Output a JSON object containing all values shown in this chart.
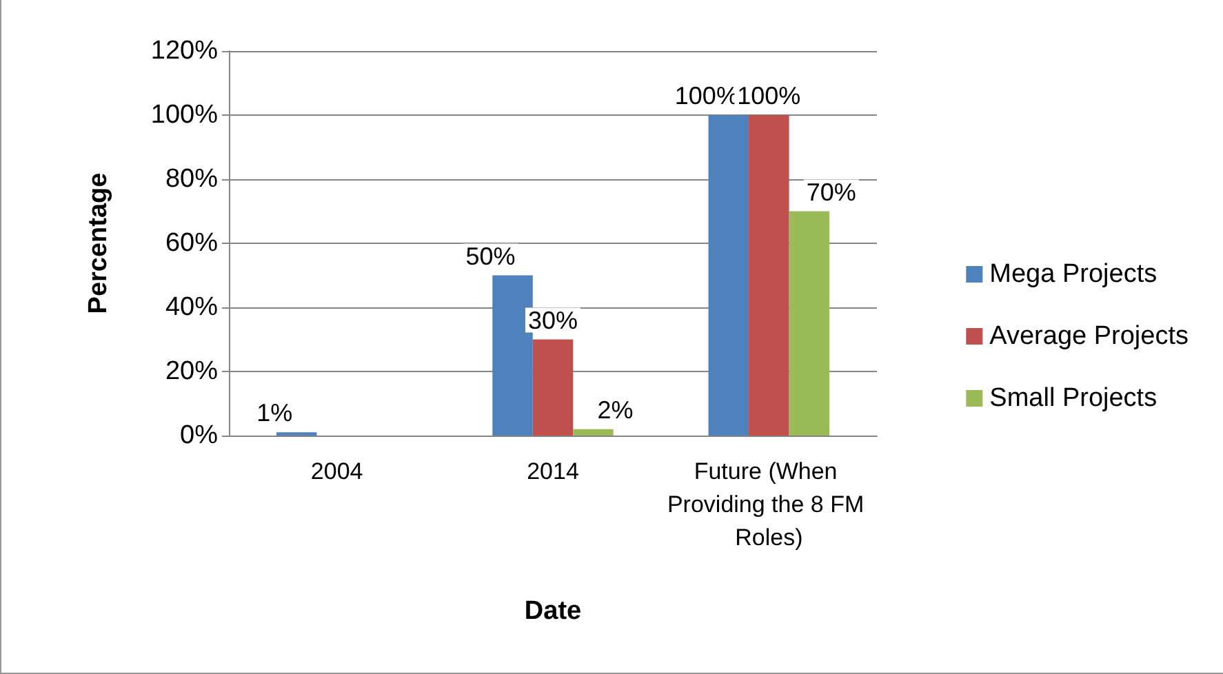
{
  "chart_data": {
    "type": "bar",
    "xlabel": "Date",
    "ylabel": "Percentage",
    "categories": [
      "2004",
      "2014",
      "Future (When Providing the 8 FM Roles)"
    ],
    "series": [
      {
        "name": "Mega Projects",
        "color": "#4f81bd",
        "values": [
          1,
          50,
          100
        ],
        "value_labels": [
          "1%",
          "50%",
          "100%"
        ]
      },
      {
        "name": "Average Projects",
        "color": "#c0504d",
        "values": [
          null,
          30,
          100
        ],
        "value_labels": [
          null,
          "30%",
          "100%"
        ]
      },
      {
        "name": "Small Projects",
        "color": "#9bbb59",
        "values": [
          null,
          2,
          70
        ],
        "value_labels": [
          null,
          "2%",
          "70%"
        ]
      }
    ],
    "ylim": [
      0,
      120
    ],
    "yticks": [
      {
        "value": 0,
        "label": "0%"
      },
      {
        "value": 20,
        "label": "20%"
      },
      {
        "value": 40,
        "label": "40%"
      },
      {
        "value": 60,
        "label": "60%"
      },
      {
        "value": 80,
        "label": "80%"
      },
      {
        "value": 100,
        "label": "100%"
      },
      {
        "value": 120,
        "label": "120%"
      }
    ],
    "grid": true,
    "legend": "right"
  }
}
